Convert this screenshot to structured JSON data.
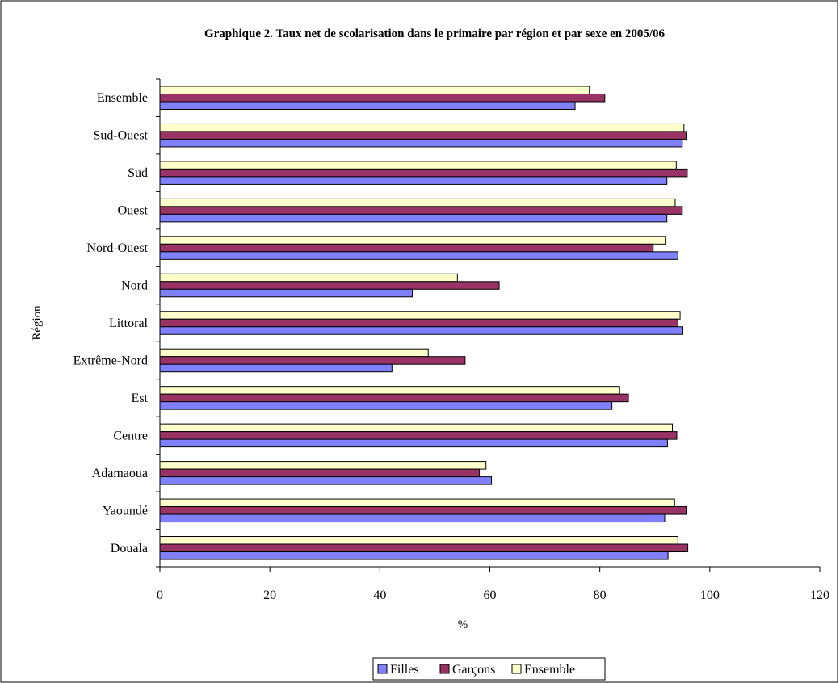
{
  "chart_data": {
    "type": "bar",
    "orientation": "horizontal",
    "title": "Graphique 2. Taux net de scolarisation dans le primaire par région et par sexe en 2005/06",
    "xlabel": "%",
    "ylabel": "Région",
    "xlim": [
      0,
      120
    ],
    "xticks": [
      "0",
      "20",
      "40",
      "60",
      "80",
      "100",
      "120"
    ],
    "grid": false,
    "legend_position": "bottom",
    "categories": [
      "Ensemble",
      "Sud-Ouest",
      "Sud",
      "Ouest",
      "Nord-Ouest",
      "Nord",
      "Littoral",
      "Extrême-Nord",
      "Est",
      "Centre",
      "Adamaoua",
      "Yaoundé",
      "Douala"
    ],
    "series": [
      {
        "name": "Filles",
        "color": "#8080ff",
        "values": [
          75.5,
          95.0,
          92.2,
          92.2,
          94.2,
          45.9,
          95.1,
          42.2,
          82.2,
          92.3,
          60.3,
          91.8,
          92.4
        ]
      },
      {
        "name": "Garçons",
        "color": "#993366",
        "values": [
          80.9,
          95.7,
          95.9,
          95.0,
          89.7,
          61.7,
          94.2,
          55.5,
          85.2,
          94.0,
          58.1,
          95.7,
          96.0
        ]
      },
      {
        "name": "Ensemble",
        "color": "#ffffcc",
        "values": [
          78.1,
          95.3,
          93.9,
          93.7,
          91.9,
          54.1,
          94.6,
          48.8,
          83.6,
          93.2,
          59.3,
          93.6,
          94.2
        ]
      }
    ]
  }
}
